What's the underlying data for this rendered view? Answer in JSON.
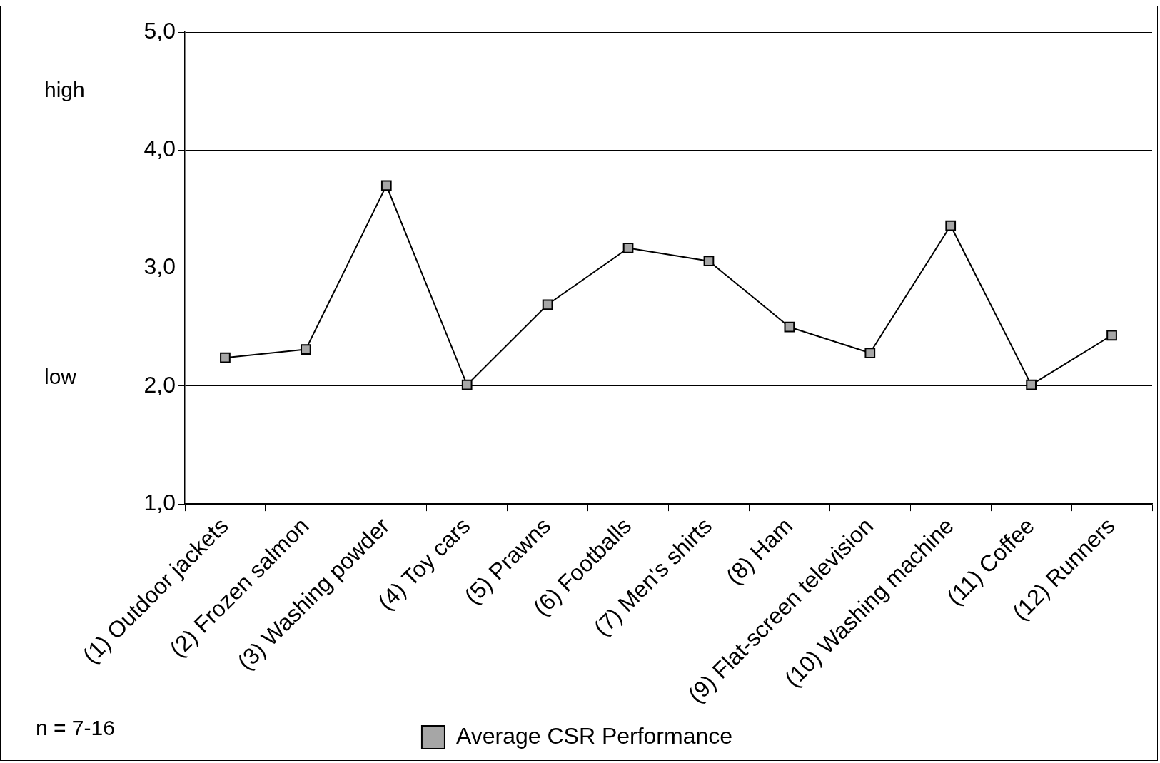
{
  "chart_data": {
    "type": "line",
    "categories": [
      "(1) Outdoor jackets",
      "(2) Frozen salmon",
      "(3) Washing powder",
      "(4) Toy cars",
      "(5) Prawns",
      "(6) Footballs",
      "(7) Men's shirts",
      "(8) Ham",
      "(9) Flat-screen television",
      "(10) Washing machine",
      "(11) Coffee",
      "(12) Runners"
    ],
    "series": [
      {
        "name": "Average CSR Performance",
        "color": "#000000",
        "values": [
          2.24,
          2.31,
          3.7,
          2.01,
          2.69,
          3.17,
          3.06,
          2.5,
          2.28,
          3.36,
          2.01,
          2.43
        ]
      }
    ],
    "ylim": [
      1,
      5
    ],
    "yticks": [
      {
        "value": 1,
        "label": "1,0"
      },
      {
        "value": 2,
        "label": "2,0"
      },
      {
        "value": 3,
        "label": "3,0"
      },
      {
        "value": 4,
        "label": "4,0"
      },
      {
        "value": 5,
        "label": "5,0"
      }
    ],
    "annotations": [
      "high",
      "low",
      "n = 7-16"
    ],
    "grid": "y",
    "legend": "bottom",
    "marker": "square",
    "line_style": "solid"
  }
}
